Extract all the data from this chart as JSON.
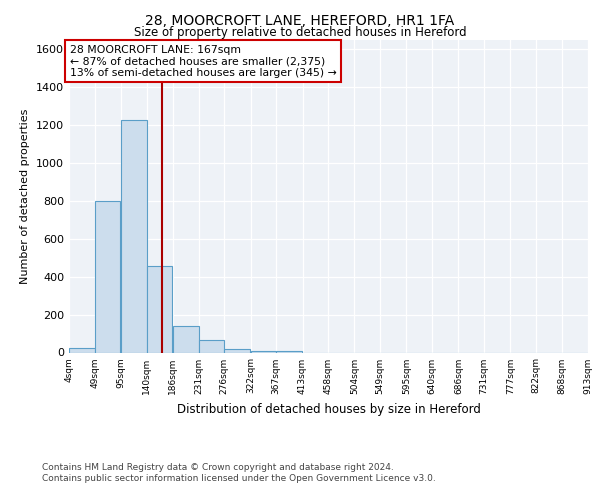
{
  "title1": "28, MOORCROFT LANE, HEREFORD, HR1 1FA",
  "title2": "Size of property relative to detached houses in Hereford",
  "xlabel": "Distribution of detached houses by size in Hereford",
  "ylabel": "Number of detached properties",
  "bin_labels": [
    "4sqm",
    "49sqm",
    "95sqm",
    "140sqm",
    "186sqm",
    "231sqm",
    "276sqm",
    "322sqm",
    "367sqm",
    "413sqm",
    "458sqm",
    "504sqm",
    "549sqm",
    "595sqm",
    "640sqm",
    "686sqm",
    "731sqm",
    "777sqm",
    "822sqm",
    "868sqm",
    "913sqm"
  ],
  "bin_edges": [
    4,
    49,
    95,
    140,
    186,
    231,
    276,
    322,
    367,
    413,
    458,
    504,
    549,
    595,
    640,
    686,
    731,
    777,
    822,
    868,
    913
  ],
  "bar_heights": [
    25,
    800,
    1230,
    455,
    140,
    65,
    20,
    10,
    10,
    0,
    0,
    0,
    0,
    0,
    0,
    0,
    0,
    0,
    0,
    0
  ],
  "bar_color": "#ccdded",
  "bar_edge_color": "#5a9ec8",
  "property_size": 167,
  "property_line_color": "#aa0000",
  "annotation_text1": "28 MOORCROFT LANE: 167sqm",
  "annotation_text2": "← 87% of detached houses are smaller (2,375)",
  "annotation_text3": "13% of semi-detached houses are larger (345) →",
  "annotation_box_color": "#ffffff",
  "annotation_box_edge": "#cc0000",
  "ylim": [
    0,
    1650
  ],
  "yticks": [
    0,
    200,
    400,
    600,
    800,
    1000,
    1200,
    1400,
    1600
  ],
  "footer1": "Contains HM Land Registry data © Crown copyright and database right 2024.",
  "footer2": "Contains public sector information licensed under the Open Government Licence v3.0.",
  "bg_color": "#eef2f7"
}
